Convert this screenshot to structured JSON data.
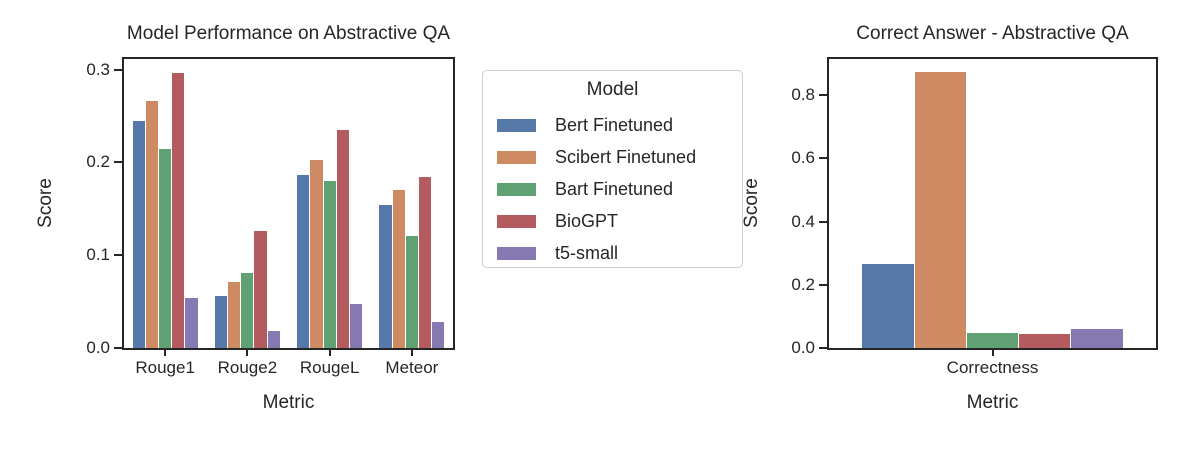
{
  "figure": {
    "background": "#ffffff",
    "text_color": "#262626",
    "axis_color": "#262626"
  },
  "legend": {
    "title": "Model"
  },
  "chart_data": [
    {
      "type": "bar",
      "title": "Model Performance on Abstractive QA",
      "xlabel": "Metric",
      "ylabel": "Score",
      "categories": [
        "Rouge1",
        "Rouge2",
        "RougeL",
        "Meteor"
      ],
      "series": [
        {
          "name": "Bert Finetuned",
          "color": "#5578A9",
          "values": [
            0.245,
            0.056,
            0.187,
            0.154
          ]
        },
        {
          "name": "Scibert Finetuned",
          "color": "#CE8A62",
          "values": [
            0.266,
            0.071,
            0.203,
            0.17
          ]
        },
        {
          "name": "Bart Finetuned",
          "color": "#5FA172",
          "values": [
            0.215,
            0.081,
            0.18,
            0.121
          ]
        },
        {
          "name": "BioGPT",
          "color": "#B45B60",
          "values": [
            0.296,
            0.126,
            0.235,
            0.184
          ]
        },
        {
          "name": "t5-small",
          "color": "#8779B2",
          "values": [
            0.054,
            0.018,
            0.047,
            0.028
          ]
        }
      ],
      "ylim": [
        0,
        0.3115
      ],
      "yticks": [
        0.0,
        0.1,
        0.2,
        0.3
      ],
      "grid": false,
      "legend_position": "outside-right"
    },
    {
      "type": "bar",
      "title": "Correct Answer - Abstractive QA",
      "xlabel": "Metric",
      "ylabel": "Score",
      "categories": [
        "Correctness"
      ],
      "series": [
        {
          "name": "Bert Finetuned",
          "color": "#5578A9",
          "values": [
            0.265
          ]
        },
        {
          "name": "Scibert Finetuned",
          "color": "#CE8A62",
          "values": [
            0.873
          ]
        },
        {
          "name": "Bart Finetuned",
          "color": "#5FA172",
          "values": [
            0.046
          ]
        },
        {
          "name": "BioGPT",
          "color": "#B45B60",
          "values": [
            0.045
          ]
        },
        {
          "name": "t5-small",
          "color": "#8779B2",
          "values": [
            0.061
          ]
        }
      ],
      "ylim": [
        0,
        0.914
      ],
      "yticks": [
        0.0,
        0.2,
        0.4,
        0.6,
        0.8
      ],
      "grid": false,
      "legend_position": "none"
    }
  ]
}
